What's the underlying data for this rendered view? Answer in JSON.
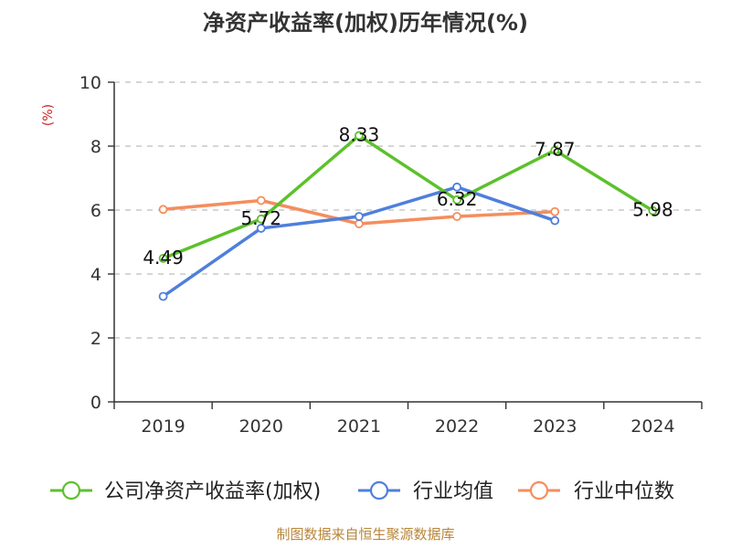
{
  "chart_data": {
    "type": "line",
    "title": "净资产收益率(加权)历年情况(%)",
    "ylabel": "(%)",
    "categories": [
      "2019",
      "2020",
      "2021",
      "2022",
      "2023",
      "2024"
    ],
    "ylim": [
      0,
      10
    ],
    "yticks": [
      0,
      2,
      4,
      6,
      8,
      10
    ],
    "grid": true,
    "legend_position": "bottom",
    "series": [
      {
        "name": "公司净资产收益率(加权)",
        "color": "#5cc12b",
        "values": [
          4.49,
          5.72,
          8.33,
          6.32,
          7.87,
          5.98
        ],
        "labels": [
          "4.49",
          "5.72",
          "8.33",
          "6.32",
          "7.87",
          "5.98"
        ]
      },
      {
        "name": "行业均值",
        "color": "#4f7fdc",
        "values": [
          3.3,
          5.43,
          5.8,
          6.72,
          5.67,
          null
        ]
      },
      {
        "name": "行业中位数",
        "color": "#f58d5d",
        "values": [
          6.02,
          6.3,
          5.57,
          5.8,
          5.95,
          null
        ]
      }
    ],
    "source": "制图数据来自恒生聚源数据库"
  }
}
